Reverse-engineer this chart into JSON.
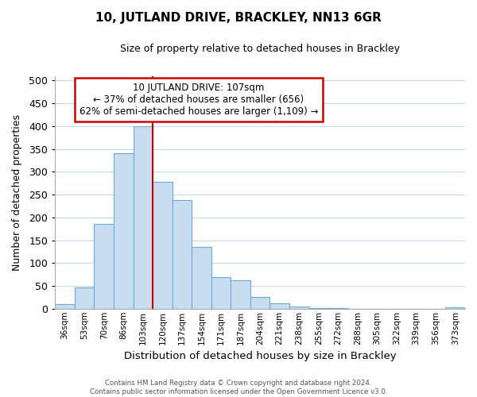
{
  "title": "10, JUTLAND DRIVE, BRACKLEY, NN13 6GR",
  "subtitle": "Size of property relative to detached houses in Brackley",
  "xlabel": "Distribution of detached houses by size in Brackley",
  "ylabel": "Number of detached properties",
  "bar_labels": [
    "36sqm",
    "53sqm",
    "70sqm",
    "86sqm",
    "103sqm",
    "120sqm",
    "137sqm",
    "154sqm",
    "171sqm",
    "187sqm",
    "204sqm",
    "221sqm",
    "238sqm",
    "255sqm",
    "272sqm",
    "288sqm",
    "305sqm",
    "322sqm",
    "339sqm",
    "356sqm",
    "373sqm"
  ],
  "bar_heights": [
    10,
    47,
    185,
    340,
    400,
    278,
    238,
    135,
    70,
    62,
    25,
    12,
    5,
    2,
    1,
    0,
    0,
    0,
    0,
    0,
    3
  ],
  "bar_face_color": "#c8ddf0",
  "bar_edge_color": "#6aaad4",
  "highlight_color": "#cc0000",
  "vline_bar_index": 4,
  "annotation_title": "10 JUTLAND DRIVE: 107sqm",
  "annotation_line1": "← 37% of detached houses are smaller (656)",
  "annotation_line2": "62% of semi-detached houses are larger (1,109) →",
  "annotation_box_facecolor": "#ffffff",
  "annotation_box_edgecolor": "#cc0000",
  "ylim": [
    0,
    510
  ],
  "yticks": [
    0,
    50,
    100,
    150,
    200,
    250,
    300,
    350,
    400,
    450,
    500
  ],
  "footer1": "Contains HM Land Registry data © Crown copyright and database right 2024.",
  "footer2": "Contains public sector information licensed under the Open Government Licence v3.0.",
  "background_color": "#ffffff",
  "grid_color": "#c8d8e8"
}
